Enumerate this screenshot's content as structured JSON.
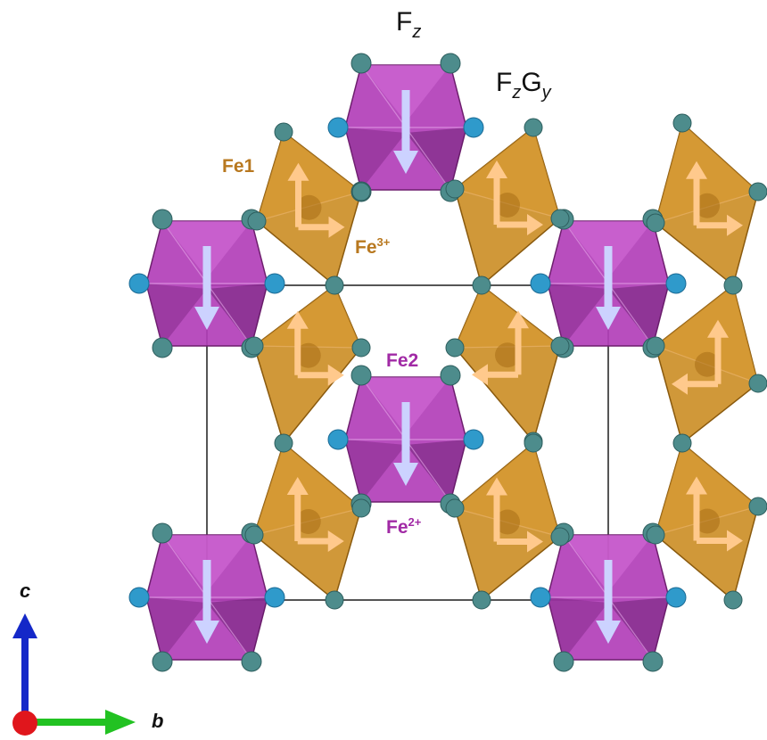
{
  "labels": {
    "fz_main": "F",
    "fz_sub": "z",
    "fzgy_f": "F",
    "fzgy_z": "z",
    "fzgy_g": "G",
    "fzgy_y": "y",
    "fe1": "Fe1",
    "fe3_base": "Fe",
    "fe3_sup": "3+",
    "fe2": "Fe2",
    "fe2_base": "Fe",
    "fe2_sup": "2+",
    "axis_c": "c",
    "axis_b": "b"
  },
  "colors": {
    "octahedron": "#b23fb8",
    "octahedron_dark": "#6e1f6e",
    "tetrahedron": "#c98a1e",
    "tetrahedron_dark": "#8a5a0e",
    "spin_arrow_oct": "#ccd2ff",
    "spin_arrow_tet": "#ffc98c",
    "oxygen": "#4d8c8c",
    "oxygen_blue": "#2f9acb",
    "fe1_text": "#b8781f",
    "fe2_text": "#a12aa5",
    "axis_c": "#1428c8",
    "axis_b": "#22c222",
    "axis_origin": "#e0161c"
  },
  "structure": {
    "octahedra": [
      {
        "site": "Fe2",
        "spin": "down"
      },
      {
        "site": "Fe2",
        "spin": "down"
      },
      {
        "site": "Fe2",
        "spin": "down"
      },
      {
        "site": "Fe2",
        "spin": "down"
      },
      {
        "site": "Fe2",
        "spin": "down"
      },
      {
        "site": "Fe2",
        "spin": "down"
      }
    ],
    "tetrahedra": [
      {
        "site": "Fe1",
        "spin": "up+b"
      },
      {
        "site": "Fe1",
        "spin": "up+b"
      },
      {
        "site": "Fe1",
        "spin": "up+b"
      },
      {
        "site": "Fe1",
        "spin": "up+b"
      },
      {
        "site": "Fe1",
        "spin": "up-b"
      },
      {
        "site": "Fe1",
        "spin": "up-b"
      },
      {
        "site": "Fe1",
        "spin": "up+b"
      },
      {
        "site": "Fe1",
        "spin": "up+b"
      },
      {
        "site": "Fe1",
        "spin": "up+b"
      },
      {
        "site": "Fe1",
        "spin": "up-b"
      },
      {
        "site": "Fe1",
        "spin": "up+b"
      },
      {
        "site": "Fe1",
        "spin": "up+b"
      }
    ]
  }
}
